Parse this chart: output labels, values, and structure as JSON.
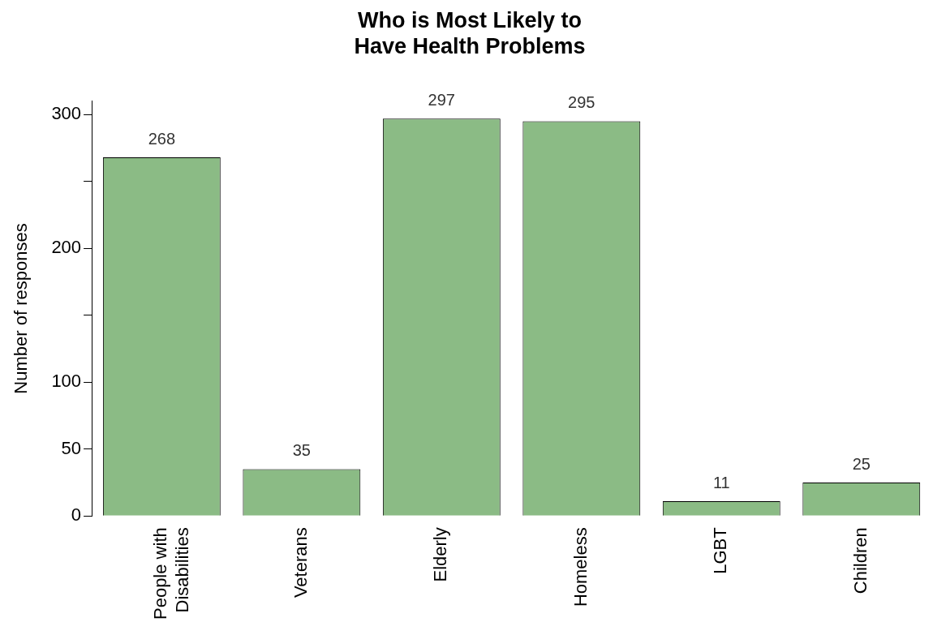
{
  "chart_data": {
    "type": "bar",
    "title": "Who is Most Likely to\nHave Health Problems",
    "ylabel": "Number of responses",
    "categories": [
      "People with\nDisabilities",
      "Veterans",
      "Elderly",
      "Homeless",
      "LGBT",
      "Children"
    ],
    "values": [
      268,
      35,
      297,
      295,
      11,
      25
    ],
    "color": "#8bbb85",
    "ylim": [
      0,
      310
    ],
    "yticks": [
      0,
      50,
      100,
      {
        "value": 150,
        "label": null
      },
      200,
      {
        "value": 250,
        "label": null
      },
      300
    ],
    "grid": false,
    "legend": false,
    "data_labels": true
  }
}
